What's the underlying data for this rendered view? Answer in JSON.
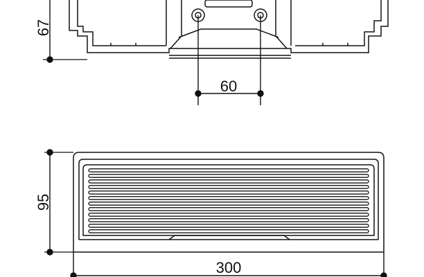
{
  "dimensions": {
    "side_view_height": "67",
    "side_view_hole_spacing": "60",
    "front_view_height": "95",
    "front_view_width": "300"
  },
  "colors": {
    "line": "#111111",
    "background": "#ffffff"
  },
  "views": {
    "side_view": {
      "ribs": 0
    },
    "front_view": {
      "slats": 12
    }
  }
}
